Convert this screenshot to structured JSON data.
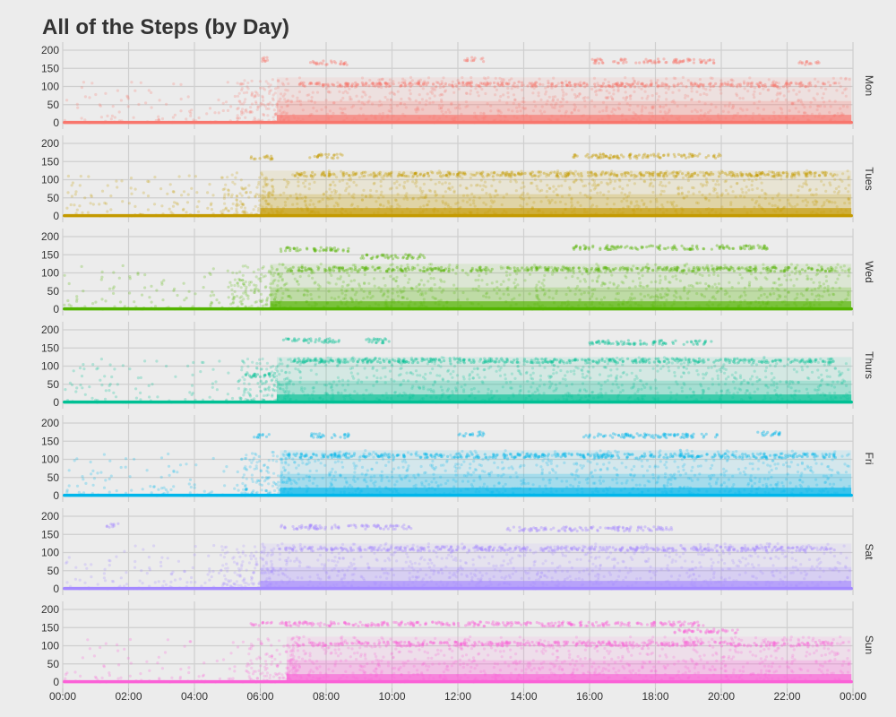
{
  "chart_data": {
    "type": "scatter",
    "title": "All of the Steps (by Day)",
    "xlabel": "",
    "ylabel": "",
    "xlim": [
      0,
      24
    ],
    "ylim": [
      0,
      200
    ],
    "y_ticks": [
      0,
      50,
      100,
      150,
      200
    ],
    "x_ticks": [
      "00:00",
      "02:00",
      "04:00",
      "06:00",
      "08:00",
      "10:00",
      "12:00",
      "14:00",
      "16:00",
      "18:00",
      "20:00",
      "22:00",
      "00:00"
    ],
    "grid": true,
    "panels": [
      {
        "label": "Mon",
        "color": "#f8766d",
        "active_start": 6.5,
        "bands": [
          {
            "y": 105,
            "start": 7.2,
            "end": 23.5
          },
          {
            "y": 165,
            "start": 7.5,
            "end": 8.7
          },
          {
            "y": 170,
            "start": 16.0,
            "end": 19.8
          },
          {
            "y": 165,
            "start": 22.3,
            "end": 23.0
          },
          {
            "y": 175,
            "start": 6.0,
            "end": 6.3
          },
          {
            "y": 175,
            "start": 12.2,
            "end": 12.8
          }
        ]
      },
      {
        "label": "Tues",
        "color": "#c49a00",
        "active_start": 6.0,
        "bands": [
          {
            "y": 115,
            "start": 7.0,
            "end": 23.5
          },
          {
            "y": 165,
            "start": 7.5,
            "end": 8.5
          },
          {
            "y": 165,
            "start": 15.5,
            "end": 20.0
          },
          {
            "y": 160,
            "start": 5.7,
            "end": 6.4
          }
        ]
      },
      {
        "label": "Wed",
        "color": "#53b400",
        "active_start": 6.3,
        "bands": [
          {
            "y": 110,
            "start": 6.8,
            "end": 23.5
          },
          {
            "y": 165,
            "start": 6.5,
            "end": 8.7
          },
          {
            "y": 170,
            "start": 15.5,
            "end": 21.5
          },
          {
            "y": 145,
            "start": 9.0,
            "end": 11.0
          }
        ]
      },
      {
        "label": "Thurs",
        "color": "#00c094",
        "active_start": 6.5,
        "bands": [
          {
            "y": 115,
            "start": 7.0,
            "end": 23.5
          },
          {
            "y": 170,
            "start": 6.7,
            "end": 8.5
          },
          {
            "y": 165,
            "start": 16.0,
            "end": 19.7
          },
          {
            "y": 75,
            "start": 5.5,
            "end": 6.5
          },
          {
            "y": 170,
            "start": 9.0,
            "end": 10.0
          }
        ]
      },
      {
        "label": "Fri",
        "color": "#00b6eb",
        "active_start": 6.6,
        "bands": [
          {
            "y": 110,
            "start": 6.8,
            "end": 23.5
          },
          {
            "y": 165,
            "start": 7.5,
            "end": 8.7
          },
          {
            "y": 165,
            "start": 15.8,
            "end": 20.0
          },
          {
            "y": 165,
            "start": 5.8,
            "end": 6.3
          },
          {
            "y": 170,
            "start": 12.0,
            "end": 12.8
          },
          {
            "y": 170,
            "start": 21.0,
            "end": 21.8
          }
        ]
      },
      {
        "label": "Sat",
        "color": "#a58aff",
        "active_start": 6.0,
        "bands": [
          {
            "y": 170,
            "start": 6.6,
            "end": 10.6
          },
          {
            "y": 110,
            "start": 6.5,
            "end": 23.5
          },
          {
            "y": 165,
            "start": 13.5,
            "end": 18.5
          },
          {
            "y": 175,
            "start": 1.3,
            "end": 1.7
          }
        ]
      },
      {
        "label": "Sun",
        "color": "#fb61d7",
        "active_start": 6.8,
        "bands": [
          {
            "y": 160,
            "start": 5.7,
            "end": 19.5
          },
          {
            "y": 105,
            "start": 7.0,
            "end": 23.5
          },
          {
            "y": 140,
            "start": 18.5,
            "end": 20.5
          }
        ]
      }
    ]
  }
}
